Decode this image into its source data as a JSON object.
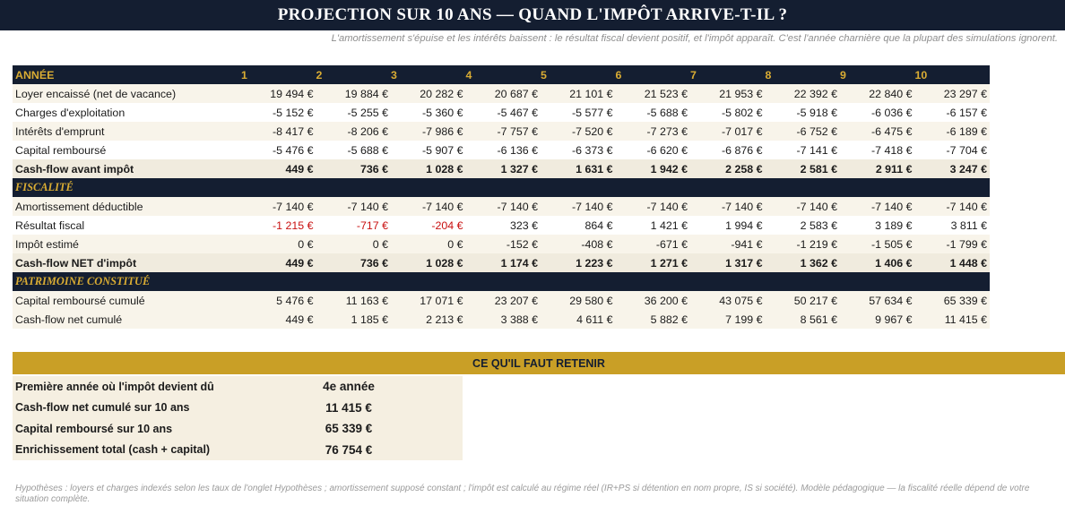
{
  "title": "PROJECTION SUR 10 ANS — QUAND L'IMPÔT ARRIVE-T-IL ?",
  "subtitle": "L'amortissement s'épuise et les intérêts baissent : le résultat fiscal devient positif, et l'impôt apparaît. C'est l'année charnière que la plupart des simulations ignorent.",
  "table": {
    "year_label": "ANNÉE",
    "years": [
      "1",
      "2",
      "3",
      "4",
      "5",
      "6",
      "7",
      "8",
      "9",
      "10"
    ],
    "rows": [
      {
        "label": "Loyer encaissé (net de vacance)",
        "kind": "alt",
        "values": [
          "19 494 €",
          "19 884 €",
          "20 282 €",
          "20 687 €",
          "21 101 €",
          "21 523 €",
          "21 953 €",
          "22 392 €",
          "22 840 €",
          "23 297 €"
        ]
      },
      {
        "label": "Charges d'exploitation",
        "kind": "plain",
        "values": [
          "-5 152 €",
          "-5 255 €",
          "-5 360 €",
          "-5 467 €",
          "-5 577 €",
          "-5 688 €",
          "-5 802 €",
          "-5 918 €",
          "-6 036 €",
          "-6 157 €"
        ]
      },
      {
        "label": "Intérêts d'emprunt",
        "kind": "alt",
        "values": [
          "-8 417 €",
          "-8 206 €",
          "-7 986 €",
          "-7 757 €",
          "-7 520 €",
          "-7 273 €",
          "-7 017 €",
          "-6 752 €",
          "-6 475 €",
          "-6 189 €"
        ]
      },
      {
        "label": "Capital remboursé",
        "kind": "plain",
        "values": [
          "-5 476 €",
          "-5 688 €",
          "-5 907 €",
          "-6 136 €",
          "-6 373 €",
          "-6 620 €",
          "-6 876 €",
          "-7 141 €",
          "-7 418 €",
          "-7 704 €"
        ]
      },
      {
        "label": "Cash-flow avant impôt",
        "kind": "total",
        "values": [
          "449 €",
          "736 €",
          "1 028 €",
          "1 327 €",
          "1 631 €",
          "1 942 €",
          "2 258 €",
          "2 581 €",
          "2 911 €",
          "3 247 €"
        ]
      },
      {
        "label": "FISCALITÉ",
        "kind": "section"
      },
      {
        "label": "Amortissement déductible",
        "kind": "alt",
        "values": [
          "-7 140 €",
          "-7 140 €",
          "-7 140 €",
          "-7 140 €",
          "-7 140 €",
          "-7 140 €",
          "-7 140 €",
          "-7 140 €",
          "-7 140 €",
          "-7 140 €"
        ]
      },
      {
        "label": "Résultat fiscal",
        "kind": "plain",
        "negative_cells": [
          0,
          1,
          2
        ],
        "values": [
          "-1 215 €",
          "-717 €",
          "-204 €",
          "323 €",
          "864 €",
          "1 421 €",
          "1 994 €",
          "2 583 €",
          "3 189 €",
          "3 811 €"
        ]
      },
      {
        "label": "Impôt estimé",
        "kind": "alt",
        "values": [
          "0 €",
          "0 €",
          "0 €",
          "-152 €",
          "-408 €",
          "-671 €",
          "-941 €",
          "-1 219 €",
          "-1 505 €",
          "-1 799 €"
        ]
      },
      {
        "label": "Cash-flow NET d'impôt",
        "kind": "total",
        "values": [
          "449 €",
          "736 €",
          "1 028 €",
          "1 174 €",
          "1 223 €",
          "1 271 €",
          "1 317 €",
          "1 362 €",
          "1 406 €",
          "1 448 €"
        ]
      },
      {
        "label": "PATRIMOINE CONSTITUÉ",
        "kind": "section"
      },
      {
        "label": "Capital remboursé cumulé",
        "kind": "alt",
        "values": [
          "5 476 €",
          "11 163 €",
          "17 071 €",
          "23 207 €",
          "29 580 €",
          "36 200 €",
          "43 075 €",
          "50 217 €",
          "57 634 €",
          "65 339 €"
        ]
      },
      {
        "label": "Cash-flow net cumulé",
        "kind": "alt",
        "values": [
          "449 €",
          "1 185 €",
          "2 213 €",
          "3 388 €",
          "4 611 €",
          "5 882 €",
          "7 199 €",
          "8 561 €",
          "9 967 €",
          "11 415 €"
        ]
      }
    ]
  },
  "retenir": {
    "heading": "CE QU'IL FAUT RETENIR",
    "items": [
      {
        "label": "Première année où l'impôt devient dû",
        "value": "4e année"
      },
      {
        "label": "Cash-flow net cumulé sur 10 ans",
        "value": "11 415 €"
      },
      {
        "label": "Capital remboursé sur 10 ans",
        "value": "65 339 €"
      },
      {
        "label": "Enrichissement total (cash + capital)",
        "value": "76 754 €"
      }
    ]
  },
  "footnote": "Hypothèses : loyers et charges indexés selon les taux de l'onglet Hypothèses ; amortissement supposé constant ; l'impôt est calculé au régime réel (IR+PS si détention en nom propre, IS si société). Modèle pédagogique — la fiscalité réelle dépend de votre situation complète.",
  "colors": {
    "navy": "#141e31",
    "gold": "#d9ac33",
    "gold_band": "#c99f26",
    "negative": "#c91010",
    "row_tint": "#f8f4ea",
    "total_tint": "#f0ebde"
  }
}
